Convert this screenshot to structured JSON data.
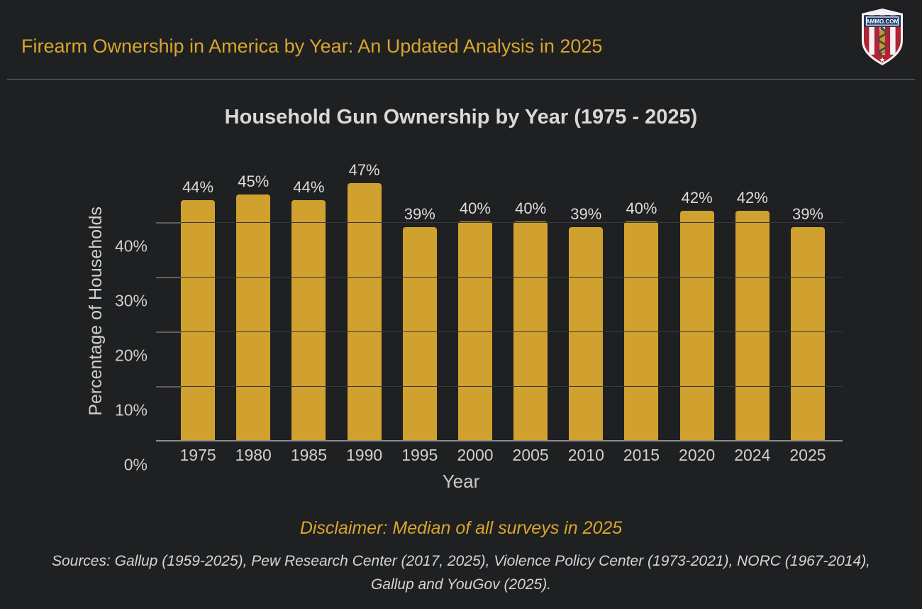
{
  "header": {
    "title": "Firearm Ownership in America by Year: An Updated Analysis in 2025",
    "logo_text": "AMMO.COM"
  },
  "chart_data": {
    "type": "bar",
    "title": "Household Gun Ownership by Year (1975 - 2025)",
    "xlabel": "Year",
    "ylabel": "Percentage of Households",
    "categories": [
      "1975",
      "1980",
      "1985",
      "1990",
      "1995",
      "2000",
      "2005",
      "2010",
      "2015",
      "2020",
      "2024",
      "2025"
    ],
    "values": [
      44,
      45,
      44,
      47,
      39,
      40,
      40,
      39,
      40,
      42,
      42,
      39
    ],
    "bar_labels": [
      "44%",
      "45%",
      "44%",
      "47%",
      "39%",
      "40%",
      "40%",
      "39%",
      "40%",
      "42%",
      "42%",
      "39%"
    ],
    "ytick_values": [
      0,
      10,
      20,
      30,
      40
    ],
    "ytick_labels": [
      "0%",
      "10%",
      "20%",
      "30%",
      "40%"
    ],
    "ylim": [
      0,
      52
    ],
    "grid": true,
    "legend": false
  },
  "footer": {
    "disclaimer": "Disclaimer: Median of all surveys in 2025",
    "sources": [
      "Sources: Gallup (1959-2025), Pew Research Center (2017, 2025), Violence Policy Center (1973-2021), NORC (1967-2014),",
      "Gallup and YouGov (2025)."
    ]
  },
  "colors": {
    "background": "#1f2022",
    "accent_gold": "#d8a62d",
    "bar_gold": "#d1a12f",
    "gridline": "#36383b",
    "axis_line": "#8c8c8c",
    "divider": "#4a4a4a",
    "logo_navy": "#1e3a66",
    "logo_red": "#b12234"
  }
}
